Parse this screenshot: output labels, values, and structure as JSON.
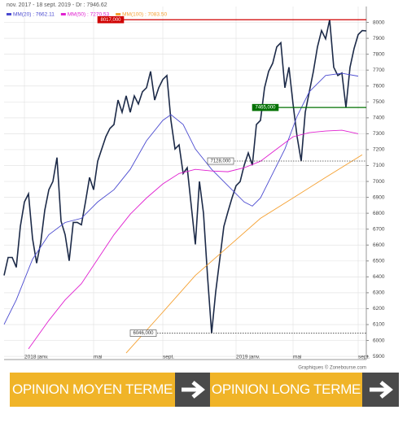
{
  "chart_data": {
    "type": "line",
    "header": "nov. 2017 - 18 sept. 2019 - Dr : 7946.62",
    "footer": "Graphiques © Zonebourse.com",
    "x": [
      0,
      1,
      2,
      3,
      4,
      5,
      6,
      7,
      8,
      9,
      10,
      11,
      12,
      13,
      14,
      15,
      16,
      17,
      18,
      19,
      20,
      21,
      22,
      23,
      24,
      25,
      26,
      27,
      28,
      29,
      30,
      31,
      32,
      33,
      34,
      35,
      36,
      37,
      38,
      39,
      40,
      41,
      42,
      43,
      44,
      45,
      46,
      47,
      48,
      49,
      50,
      51,
      52,
      53,
      54,
      55,
      56,
      57,
      58,
      59,
      60,
      61,
      62,
      63,
      64,
      65,
      66,
      67,
      68,
      69,
      70,
      71,
      72,
      73,
      74,
      75,
      76,
      77,
      78,
      79,
      80,
      81,
      82,
      83,
      84,
      85,
      86,
      87,
      88,
      89
    ],
    "series": [
      {
        "name": "Prix",
        "color": "#1c2a48",
        "values": [
          6409,
          6522,
          6522,
          6460,
          6717,
          6871,
          6922,
          6640,
          6486,
          6614,
          6819,
          6948,
          7000,
          7150,
          6750,
          6665,
          6501,
          6742,
          6742,
          6727,
          6871,
          7025,
          6948,
          7127,
          7204,
          7281,
          7333,
          7358,
          7512,
          7435,
          7538,
          7435,
          7538,
          7487,
          7564,
          7589,
          7692,
          7512,
          7589,
          7641,
          7666,
          7384,
          7204,
          7230,
          7050,
          7086,
          6845,
          6604,
          7000,
          6800,
          6400,
          6046,
          6306,
          6511,
          6717,
          6809,
          6896,
          6973,
          6999,
          7102,
          7179,
          7102,
          7358,
          7384,
          7589,
          7692,
          7743,
          7846,
          7872,
          7589,
          7718,
          7487,
          7281,
          7128,
          7435,
          7564,
          7692,
          7846,
          7949,
          7897,
          8017,
          7718,
          7666,
          7682,
          7465,
          7718,
          7836,
          7923,
          7949,
          7946.62
        ]
      },
      {
        "name": "MM(20) : 7662.11",
        "color": "#4a4ad0",
        "x": [
          0,
          3,
          7,
          11,
          15,
          19,
          23,
          27,
          31,
          35,
          39,
          41,
          44,
          47,
          51,
          55,
          59,
          61,
          63,
          66,
          69,
          72,
          75,
          79,
          83,
          87
        ],
        "values": [
          6101,
          6255,
          6511,
          6665,
          6742,
          6768,
          6871,
          6948,
          7076,
          7256,
          7384,
          7420,
          7358,
          7204,
          7076,
          6973,
          6871,
          6845,
          6896,
          7050,
          7204,
          7410,
          7564,
          7666,
          7680,
          7662
        ]
      },
      {
        "name": "MM(50) : 7270.53",
        "color": "#e020d0",
        "x": [
          6,
          11,
          15,
          19,
          23,
          27,
          31,
          35,
          39,
          43,
          47,
          51,
          55,
          59,
          63,
          67,
          71,
          75,
          79,
          83,
          87
        ],
        "values": [
          5947,
          6126,
          6255,
          6357,
          6511,
          6665,
          6794,
          6896,
          6984,
          7050,
          7076,
          7066,
          7061,
          7086,
          7127,
          7204,
          7281,
          7307,
          7317,
          7322,
          7300
        ]
      },
      {
        "name": "MM(100) : 7083.50",
        "color": "#f5a030",
        "x": [
          30,
          39,
          47,
          55,
          63,
          71,
          79,
          88
        ],
        "values": [
          5921,
          6178,
          6409,
          6588,
          6768,
          6896,
          7025,
          7168
        ]
      }
    ],
    "levels": [
      {
        "value": 8017,
        "label": "8017,000",
        "color": "#d00000",
        "start": 23
      },
      {
        "value": 7465,
        "label": "7465,000",
        "color": "#007000",
        "start": 61
      },
      {
        "value": 7128,
        "label": "7128,000",
        "color": "#444444",
        "start": 50
      },
      {
        "value": 6046,
        "label": "6046,000",
        "color": "#444444",
        "start": 31
      }
    ],
    "xlim": [
      0,
      89
    ],
    "xticks": [
      {
        "value": 5,
        "label": "2018 janv."
      },
      {
        "value": 22,
        "label": "mai"
      },
      {
        "value": 39,
        "label": "sept."
      },
      {
        "value": 57,
        "label": "2019 janv."
      },
      {
        "value": 71,
        "label": "mai"
      },
      {
        "value": 87,
        "label": "sept."
      }
    ],
    "ylim": [
      5880,
      8100
    ],
    "yticks": [
      5900,
      6000,
      6100,
      6200,
      6300,
      6400,
      6500,
      6600,
      6700,
      6800,
      6900,
      7000,
      7100,
      7200,
      7300,
      7400,
      7500,
      7600,
      7700,
      7800,
      7900,
      8000
    ],
    "grid": true,
    "banner": [
      "OPINION MOYEN TERME",
      "OPINION LONG TERME"
    ]
  }
}
